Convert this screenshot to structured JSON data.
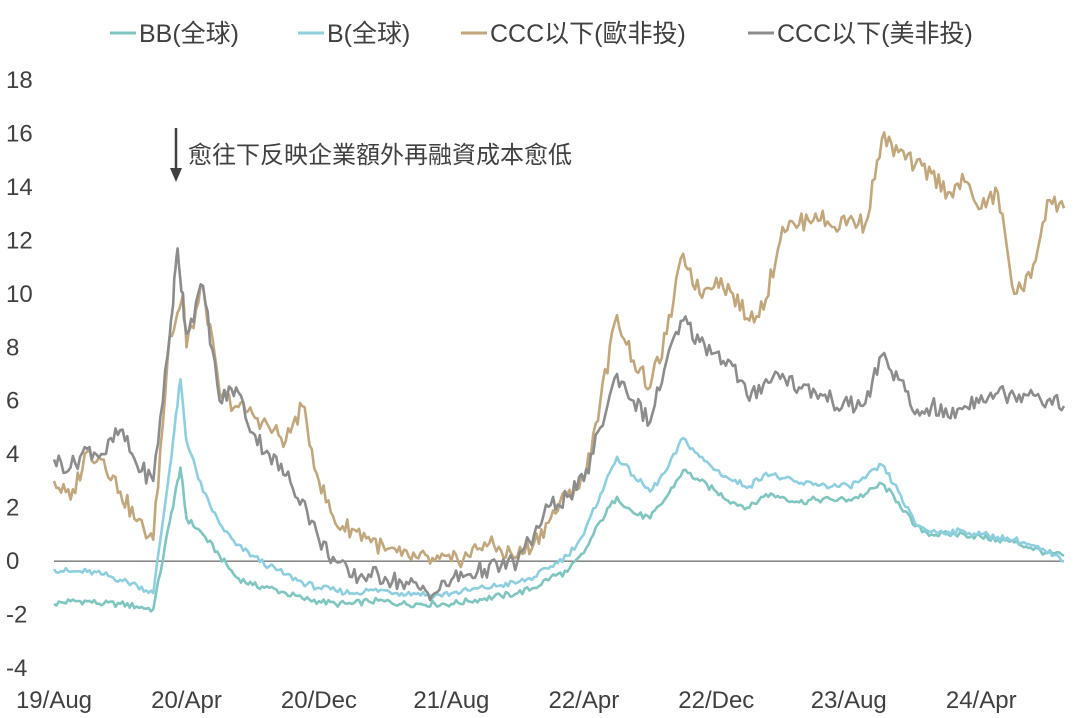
{
  "chart_data": {
    "type": "line",
    "title": "",
    "xlabel": "",
    "ylabel": "",
    "ylim": [
      -4,
      18
    ],
    "yticks": [
      -4,
      -2,
      0,
      2,
      4,
      6,
      8,
      10,
      12,
      14,
      16,
      18
    ],
    "ytick_labels": [
      "-4",
      "-2",
      "0",
      "2",
      "4",
      "6",
      "8",
      "10",
      "12",
      "14",
      "16",
      "18"
    ],
    "xlim": [
      "2019-08",
      "2024-09"
    ],
    "xticks": [
      {
        "x": "2019-08",
        "label": "19/Aug"
      },
      {
        "x": "2020-04",
        "label": "20/Apr"
      },
      {
        "x": "2020-12",
        "label": "20/Dec"
      },
      {
        "x": "2021-08",
        "label": "21/Aug"
      },
      {
        "x": "2022-04",
        "label": "22/Apr"
      },
      {
        "x": "2022-12",
        "label": "22/Dec"
      },
      {
        "x": "2023-08",
        "label": "23/Aug"
      },
      {
        "x": "2024-04",
        "label": "24/Apr"
      }
    ],
    "grid": false,
    "zero_line": true,
    "legend_position": "top",
    "annotation": {
      "text": "愈往下反映企業額外再融資成本愈低",
      "x": "2020-03",
      "arrow": "down"
    },
    "series": [
      {
        "name": "BB(全球)",
        "color": "#7fc5c0",
        "points": [
          [
            "2019-08",
            -1.6
          ],
          [
            "2019-09",
            -1.5
          ],
          [
            "2019-10",
            -1.5
          ],
          [
            "2019-11",
            -1.6
          ],
          [
            "2019-12",
            -1.6
          ],
          [
            "2020-01",
            -1.7
          ],
          [
            "2020-02",
            -1.8
          ],
          [
            "2020-03",
            1.5
          ],
          [
            "2020-03-20",
            3.5
          ],
          [
            "2020-04",
            1.6
          ],
          [
            "2020-05",
            1.0
          ],
          [
            "2020-06",
            0.2
          ],
          [
            "2020-07",
            -0.6
          ],
          [
            "2020-08",
            -0.9
          ],
          [
            "2020-09",
            -1.0
          ],
          [
            "2020-10",
            -1.2
          ],
          [
            "2020-11",
            -1.4
          ],
          [
            "2020-12",
            -1.5
          ],
          [
            "2021-01",
            -1.6
          ],
          [
            "2021-02",
            -1.6
          ],
          [
            "2021-03",
            -1.5
          ],
          [
            "2021-04",
            -1.5
          ],
          [
            "2021-05",
            -1.6
          ],
          [
            "2021-06",
            -1.6
          ],
          [
            "2021-07",
            -1.6
          ],
          [
            "2021-08",
            -1.6
          ],
          [
            "2021-09",
            -1.5
          ],
          [
            "2021-10",
            -1.4
          ],
          [
            "2021-11",
            -1.3
          ],
          [
            "2021-12",
            -1.2
          ],
          [
            "2022-01",
            -1.0
          ],
          [
            "2022-02",
            -0.6
          ],
          [
            "2022-03",
            -0.4
          ],
          [
            "2022-04",
            0.3
          ],
          [
            "2022-05",
            1.5
          ],
          [
            "2022-06",
            2.4
          ],
          [
            "2022-07",
            1.8
          ],
          [
            "2022-08",
            1.6
          ],
          [
            "2022-09",
            2.4
          ],
          [
            "2022-10",
            3.4
          ],
          [
            "2022-11",
            3.0
          ],
          [
            "2022-12",
            2.6
          ],
          [
            "2023-01",
            2.2
          ],
          [
            "2023-02",
            2.0
          ],
          [
            "2023-03",
            2.5
          ],
          [
            "2023-04",
            2.4
          ],
          [
            "2023-05",
            2.2
          ],
          [
            "2023-06",
            2.3
          ],
          [
            "2023-07",
            2.3
          ],
          [
            "2023-08",
            2.3
          ],
          [
            "2023-09",
            2.5
          ],
          [
            "2023-10",
            2.9
          ],
          [
            "2023-11",
            2.2
          ],
          [
            "2023-12",
            1.3
          ],
          [
            "2024-01",
            1.0
          ],
          [
            "2024-02",
            1.0
          ],
          [
            "2024-03",
            1.0
          ],
          [
            "2024-04",
            0.9
          ],
          [
            "2024-05",
            0.8
          ],
          [
            "2024-06",
            0.7
          ],
          [
            "2024-07",
            0.5
          ],
          [
            "2024-08",
            0.3
          ],
          [
            "2024-09",
            0.2
          ]
        ]
      },
      {
        "name": "B(全球)",
        "color": "#8ecfdf",
        "points": [
          [
            "2019-08",
            -0.3
          ],
          [
            "2019-09",
            -0.4
          ],
          [
            "2019-10",
            -0.4
          ],
          [
            "2019-11",
            -0.5
          ],
          [
            "2019-12",
            -0.7
          ],
          [
            "2020-01",
            -0.9
          ],
          [
            "2020-02",
            -1.2
          ],
          [
            "2020-03",
            3.5
          ],
          [
            "2020-03-20",
            6.8
          ],
          [
            "2020-04",
            4.5
          ],
          [
            "2020-05",
            2.6
          ],
          [
            "2020-06",
            1.4
          ],
          [
            "2020-07",
            0.6
          ],
          [
            "2020-08",
            0.2
          ],
          [
            "2020-09",
            -0.2
          ],
          [
            "2020-10",
            -0.5
          ],
          [
            "2020-11",
            -0.8
          ],
          [
            "2020-12",
            -1.0
          ],
          [
            "2021-01",
            -1.1
          ],
          [
            "2021-02",
            -1.2
          ],
          [
            "2021-03",
            -1.1
          ],
          [
            "2021-04",
            -1.1
          ],
          [
            "2021-05",
            -1.2
          ],
          [
            "2021-06",
            -1.2
          ],
          [
            "2021-07",
            -1.3
          ],
          [
            "2021-08",
            -1.2
          ],
          [
            "2021-09",
            -1.1
          ],
          [
            "2021-10",
            -1.0
          ],
          [
            "2021-11",
            -0.9
          ],
          [
            "2021-12",
            -0.8
          ],
          [
            "2022-01",
            -0.6
          ],
          [
            "2022-02",
            -0.2
          ],
          [
            "2022-03",
            0.2
          ],
          [
            "2022-04",
            1.0
          ],
          [
            "2022-05",
            2.5
          ],
          [
            "2022-06",
            3.9
          ],
          [
            "2022-07",
            3.2
          ],
          [
            "2022-08",
            2.6
          ],
          [
            "2022-09",
            3.4
          ],
          [
            "2022-10",
            4.6
          ],
          [
            "2022-11",
            3.9
          ],
          [
            "2022-12",
            3.4
          ],
          [
            "2023-01",
            3.0
          ],
          [
            "2023-02",
            2.8
          ],
          [
            "2023-03",
            3.3
          ],
          [
            "2023-04",
            3.1
          ],
          [
            "2023-05",
            2.9
          ],
          [
            "2023-06",
            2.9
          ],
          [
            "2023-07",
            2.8
          ],
          [
            "2023-08",
            2.8
          ],
          [
            "2023-09",
            3.1
          ],
          [
            "2023-10",
            3.6
          ],
          [
            "2023-11",
            2.6
          ],
          [
            "2023-12",
            1.4
          ],
          [
            "2024-01",
            1.1
          ],
          [
            "2024-02",
            1.1
          ],
          [
            "2024-03",
            1.1
          ],
          [
            "2024-04",
            1.0
          ],
          [
            "2024-05",
            0.9
          ],
          [
            "2024-06",
            0.8
          ],
          [
            "2024-07",
            0.6
          ],
          [
            "2024-08",
            0.3
          ],
          [
            "2024-09",
            0.0
          ]
        ]
      },
      {
        "name": "CCC以下(歐非投)",
        "color": "#c2a77c",
        "points": [
          [
            "2019-08",
            3.0
          ],
          [
            "2019-09",
            2.3
          ],
          [
            "2019-10",
            4.1
          ],
          [
            "2019-11",
            3.8
          ],
          [
            "2019-12",
            2.6
          ],
          [
            "2020-01",
            1.5
          ],
          [
            "2020-02",
            0.8
          ],
          [
            "2020-03",
            8.5
          ],
          [
            "2020-03-25",
            10.0
          ],
          [
            "2020-04",
            8.0
          ],
          [
            "2020-05",
            10.3
          ],
          [
            "2020-06",
            6.3
          ],
          [
            "2020-07",
            5.8
          ],
          [
            "2020-08",
            5.5
          ],
          [
            "2020-09",
            5.0
          ],
          [
            "2020-10",
            4.5
          ],
          [
            "2020-11",
            5.8
          ],
          [
            "2020-12",
            3.0
          ],
          [
            "2021-01",
            1.4
          ],
          [
            "2021-02",
            1.2
          ],
          [
            "2021-03",
            0.9
          ],
          [
            "2021-04",
            0.4
          ],
          [
            "2021-05",
            0.2
          ],
          [
            "2021-06",
            0.1
          ],
          [
            "2021-07",
            0.0
          ],
          [
            "2021-08",
            0.0
          ],
          [
            "2021-09",
            0.2
          ],
          [
            "2021-10",
            0.7
          ],
          [
            "2021-11",
            0.4
          ],
          [
            "2021-12",
            0.2
          ],
          [
            "2022-01",
            0.7
          ],
          [
            "2022-02",
            1.6
          ],
          [
            "2022-03",
            2.5
          ],
          [
            "2022-04",
            3.0
          ],
          [
            "2022-05",
            6.0
          ],
          [
            "2022-06",
            9.2
          ],
          [
            "2022-07",
            7.5
          ],
          [
            "2022-08",
            6.5
          ],
          [
            "2022-09",
            8.5
          ],
          [
            "2022-10",
            11.5
          ],
          [
            "2022-11",
            10.0
          ],
          [
            "2022-12",
            10.6
          ],
          [
            "2023-01",
            10.0
          ],
          [
            "2023-02",
            9.0
          ],
          [
            "2023-03",
            9.8
          ],
          [
            "2023-04",
            12.5
          ],
          [
            "2023-05",
            12.6
          ],
          [
            "2023-06",
            13.0
          ],
          [
            "2023-07",
            12.5
          ],
          [
            "2023-08",
            12.8
          ],
          [
            "2023-09",
            12.6
          ],
          [
            "2023-10",
            15.8
          ],
          [
            "2023-11",
            15.3
          ],
          [
            "2023-12",
            14.8
          ],
          [
            "2024-01",
            14.5
          ],
          [
            "2024-02",
            13.8
          ],
          [
            "2024-03",
            14.2
          ],
          [
            "2024-04",
            13.2
          ],
          [
            "2024-05",
            13.8
          ],
          [
            "2024-06",
            10.0
          ],
          [
            "2024-07",
            10.6
          ],
          [
            "2024-08",
            13.5
          ],
          [
            "2024-09",
            13.2
          ]
        ]
      },
      {
        "name": "CCC以下(美非投)",
        "color": "#8c8c8c",
        "points": [
          [
            "2019-08",
            3.8
          ],
          [
            "2019-09",
            3.5
          ],
          [
            "2019-10",
            4.2
          ],
          [
            "2019-11",
            4.0
          ],
          [
            "2019-12",
            4.9
          ],
          [
            "2020-01",
            3.6
          ],
          [
            "2020-02",
            3.0
          ],
          [
            "2020-03",
            8.5
          ],
          [
            "2020-03-15",
            11.7
          ],
          [
            "2020-04",
            8.5
          ],
          [
            "2020-05",
            10.3
          ],
          [
            "2020-06",
            6.0
          ],
          [
            "2020-07",
            6.5
          ],
          [
            "2020-08",
            4.8
          ],
          [
            "2020-09",
            4.0
          ],
          [
            "2020-10",
            3.2
          ],
          [
            "2020-11",
            2.3
          ],
          [
            "2020-12",
            0.8
          ],
          [
            "2021-01",
            0.0
          ],
          [
            "2021-02",
            -0.6
          ],
          [
            "2021-03",
            -0.5
          ],
          [
            "2021-04",
            -0.6
          ],
          [
            "2021-05",
            -0.8
          ],
          [
            "2021-06",
            -1.0
          ],
          [
            "2021-07",
            -1.2
          ],
          [
            "2021-08",
            -0.7
          ],
          [
            "2021-09",
            -0.5
          ],
          [
            "2021-10",
            -0.3
          ],
          [
            "2021-11",
            -0.2
          ],
          [
            "2021-12",
            0.0
          ],
          [
            "2022-01",
            1.0
          ],
          [
            "2022-02",
            2.1
          ],
          [
            "2022-03",
            2.4
          ],
          [
            "2022-04",
            3.0
          ],
          [
            "2022-05",
            5.0
          ],
          [
            "2022-06",
            7.0
          ],
          [
            "2022-07",
            6.0
          ],
          [
            "2022-08",
            5.2
          ],
          [
            "2022-09",
            7.5
          ],
          [
            "2022-10",
            9.0
          ],
          [
            "2022-11",
            8.2
          ],
          [
            "2022-12",
            7.8
          ],
          [
            "2023-01",
            7.3
          ],
          [
            "2023-02",
            6.0
          ],
          [
            "2023-03",
            6.8
          ],
          [
            "2023-04",
            7.0
          ],
          [
            "2023-05",
            6.5
          ],
          [
            "2023-06",
            6.3
          ],
          [
            "2023-07",
            6.0
          ],
          [
            "2023-08",
            5.8
          ],
          [
            "2023-09",
            5.9
          ],
          [
            "2023-10",
            7.7
          ],
          [
            "2023-11",
            6.8
          ],
          [
            "2023-12",
            5.5
          ],
          [
            "2024-01",
            5.8
          ],
          [
            "2024-02",
            5.4
          ],
          [
            "2024-03",
            5.8
          ],
          [
            "2024-04",
            6.2
          ],
          [
            "2024-05",
            6.3
          ],
          [
            "2024-06",
            6.2
          ],
          [
            "2024-07",
            6.4
          ],
          [
            "2024-08",
            6.0
          ],
          [
            "2024-09",
            5.8
          ]
        ]
      }
    ]
  }
}
